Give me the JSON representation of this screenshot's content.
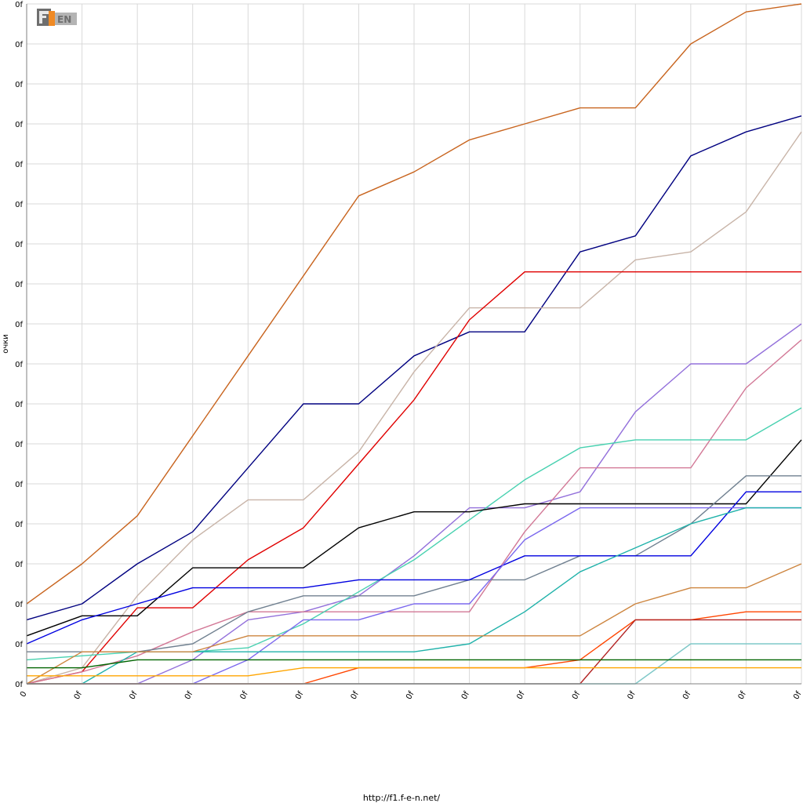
{
  "footer": {
    "url": "http://f1.f-e-n.net/"
  },
  "logo": {
    "text": "FEN",
    "icon": "f1-fen-logo",
    "colors": [
      "#6e6e6e",
      "#f08a24",
      "#b4b4b4"
    ]
  },
  "chart_data": {
    "type": "line",
    "title": "",
    "xlabel": "",
    "ylabel": "очки",
    "x_tick_labels": [
      "0",
      "0f",
      "0f",
      "0f",
      "0f",
      "0f",
      "0f",
      "0f",
      "0f",
      "0f",
      "0f",
      "0f",
      "0f",
      "0f",
      "0f"
    ],
    "y_tick_labels": [
      "0f",
      "0f",
      "0f",
      "0f",
      "0f",
      "0f",
      "0f",
      "0f",
      "0f",
      "0f",
      "0f",
      "0f",
      "0f",
      "0f",
      "0f",
      "0f",
      "0f",
      "0f"
    ],
    "xlim": [
      0,
      14
    ],
    "ylim": [
      0,
      170
    ],
    "grid": true,
    "legend": "none",
    "x": [
      0,
      1,
      2,
      3,
      4,
      5,
      6,
      7,
      8,
      9,
      10,
      11,
      12,
      13,
      14
    ],
    "series": [
      {
        "color": "#c8641e",
        "values": [
          20,
          30,
          42,
          62,
          82,
          102,
          122,
          128,
          136,
          140,
          144,
          144,
          160,
          168,
          170
        ]
      },
      {
        "color": "#000080",
        "values": [
          16,
          20,
          30,
          38,
          54,
          70,
          70,
          82,
          88,
          88,
          108,
          112,
          132,
          138,
          142
        ]
      },
      {
        "color": "#c8b4a8",
        "values": [
          0,
          4,
          22,
          36,
          46,
          46,
          58,
          78,
          94,
          94,
          94,
          106,
          108,
          118,
          138
        ]
      },
      {
        "color": "#e00000",
        "values": [
          0,
          3,
          19,
          19,
          31,
          39,
          55,
          71,
          91,
          103,
          103,
          103,
          103,
          103,
          103
        ]
      },
      {
        "color": "#9370db",
        "values": [
          0,
          0,
          0,
          6,
          16,
          18,
          22,
          32,
          44,
          44,
          48,
          68,
          80,
          80,
          90
        ]
      },
      {
        "color": "#d27896",
        "values": [
          0,
          3,
          7,
          13,
          18,
          18,
          18,
          18,
          18,
          38,
          54,
          54,
          54,
          74,
          86
        ]
      },
      {
        "color": "#48d1b0",
        "values": [
          6,
          7,
          8,
          8,
          9,
          15,
          23,
          31,
          41,
          51,
          59,
          61,
          61,
          61,
          69
        ]
      },
      {
        "color": "#000000",
        "values": [
          12,
          17,
          17,
          29,
          29,
          29,
          39,
          43,
          43,
          45,
          45,
          45,
          45,
          45,
          61
        ]
      },
      {
        "color": "#708090",
        "values": [
          8,
          8,
          8,
          10,
          18,
          22,
          22,
          22,
          26,
          26,
          32,
          32,
          40,
          52,
          52
        ]
      },
      {
        "color": "#0000e0",
        "values": [
          10,
          16,
          20,
          24,
          24,
          24,
          26,
          26,
          26,
          32,
          32,
          32,
          32,
          48,
          48
        ]
      },
      {
        "color": "#7b68ee",
        "values": [
          0,
          0,
          0,
          0,
          6,
          16,
          16,
          20,
          20,
          36,
          44,
          44,
          44,
          44,
          44
        ]
      },
      {
        "color": "#20b2aa",
        "values": [
          0,
          0,
          8,
          8,
          8,
          8,
          8,
          8,
          10,
          18,
          28,
          34,
          40,
          44,
          44
        ]
      },
      {
        "color": "#cd853f",
        "values": [
          0,
          8,
          8,
          8,
          12,
          12,
          12,
          12,
          12,
          12,
          12,
          20,
          24,
          24,
          30
        ]
      },
      {
        "color": "#ff4500",
        "values": [
          0,
          0,
          0,
          0,
          0,
          0,
          4,
          4,
          4,
          4,
          6,
          16,
          16,
          18,
          18
        ]
      },
      {
        "color": "#b22222",
        "values": [
          0,
          0,
          0,
          0,
          0,
          0,
          0,
          0,
          0,
          0,
          0,
          16,
          16,
          16,
          16
        ]
      },
      {
        "color": "#7fc8c8",
        "values": [
          0,
          0,
          0,
          0,
          0,
          0,
          0,
          0,
          0,
          0,
          0,
          0,
          10,
          10,
          10
        ]
      },
      {
        "color": "#006400",
        "values": [
          4,
          4,
          6,
          6,
          6,
          6,
          6,
          6,
          6,
          6,
          6,
          6,
          6,
          6,
          6
        ]
      },
      {
        "color": "#ffa500",
        "values": [
          2,
          2,
          2,
          2,
          2,
          4,
          4,
          4,
          4,
          4,
          4,
          4,
          4,
          4,
          4
        ]
      }
    ]
  }
}
